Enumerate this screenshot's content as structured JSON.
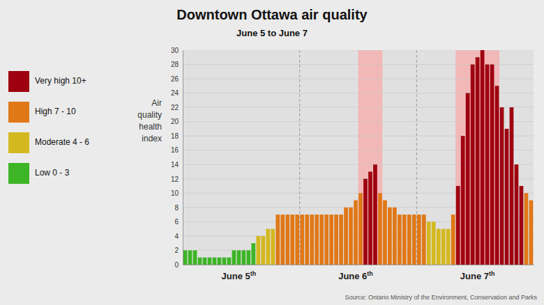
{
  "chart_data": {
    "type": "bar",
    "title": "Downtown Ottawa air quality",
    "subtitle": "June 5 to June 7",
    "source": "Source: Ontario Ministry of the Environment, Conservation and Parks",
    "ylabel": [
      "Air",
      "quality",
      "health",
      "index"
    ],
    "categories": [
      null,
      null,
      null,
      null,
      null,
      null,
      null,
      null,
      null,
      null,
      null,
      "June 5",
      null,
      null,
      null,
      null,
      null,
      null,
      null,
      null,
      null,
      null,
      null,
      null,
      null,
      null,
      null,
      null,
      null,
      null,
      null,
      null,
      null,
      null,
      null,
      "June 6",
      null,
      null,
      null,
      null,
      null,
      null,
      null,
      null,
      null,
      null,
      null,
      null,
      null,
      null,
      null,
      null,
      null,
      null,
      null,
      null,
      null,
      null,
      null,
      null,
      "June 7",
      null,
      null,
      null,
      null,
      null,
      null,
      null,
      null,
      null,
      null,
      null
    ],
    "category_suffix": "th",
    "values": [
      2,
      2,
      2,
      1,
      1,
      1,
      1,
      1,
      1,
      1,
      2,
      2,
      2,
      2,
      3,
      4,
      4,
      5,
      5,
      7,
      7,
      7,
      7,
      7,
      7,
      7,
      7,
      7,
      7,
      7,
      7,
      7,
      7,
      8,
      8,
      9,
      10,
      12,
      13,
      14,
      10,
      9,
      8,
      8,
      7,
      7,
      7,
      7,
      7,
      7,
      6,
      6,
      5,
      5,
      5,
      7,
      11,
      18,
      24,
      28,
      29,
      30,
      28,
      28,
      25,
      22,
      19,
      22,
      14,
      11,
      10,
      9
    ],
    "colors": [
      "#3db526",
      "#3db526",
      "#3db526",
      "#3db526",
      "#3db526",
      "#3db526",
      "#3db526",
      "#3db526",
      "#3db526",
      "#3db526",
      "#3db526",
      "#3db526",
      "#3db526",
      "#3db526",
      "#3db526",
      "#d4b820",
      "#d4b820",
      "#d4b820",
      "#d4b820",
      "#e07818",
      "#e07818",
      "#e07818",
      "#e07818",
      "#e07818",
      "#e07818",
      "#e07818",
      "#e07818",
      "#e07818",
      "#e07818",
      "#e07818",
      "#e07818",
      "#e07818",
      "#e07818",
      "#e07818",
      "#e07818",
      "#e07818",
      "#e07818",
      "#9e0010",
      "#9e0010",
      "#9e0010",
      "#e07818",
      "#e07818",
      "#e07818",
      "#e07818",
      "#e07818",
      "#e07818",
      "#e07818",
      "#e07818",
      "#e07818",
      "#e07818",
      "#d4b820",
      "#d4b820",
      "#d4b820",
      "#d4b820",
      "#d4b820",
      "#e07818",
      "#9e0010",
      "#9e0010",
      "#9e0010",
      "#9e0010",
      "#9e0010",
      "#9e0010",
      "#9e0010",
      "#9e0010",
      "#9e0010",
      "#9e0010",
      "#9e0010",
      "#9e0010",
      "#9e0010",
      "#9e0010",
      "#e07818",
      "#e07818"
    ],
    "ylim": [
      0,
      30
    ],
    "yticks": [
      0,
      2,
      4,
      6,
      8,
      10,
      12,
      14,
      16,
      18,
      20,
      22,
      24,
      26,
      28,
      30
    ],
    "grid": true,
    "legend": "left",
    "legend_items": [
      {
        "label": "Very high 10+",
        "color": "#9e0010"
      },
      {
        "label": "High 7 - 10",
        "color": "#e07818"
      },
      {
        "label": "Moderate 4 - 6",
        "color": "#d4b820"
      },
      {
        "label": "Low 0 - 3",
        "color": "#3db526"
      }
    ],
    "highlight_ranges": [
      [
        36,
        40
      ],
      [
        56,
        64
      ]
    ],
    "highlight_color": "#f2b8b8",
    "day_separators": [
      24,
      48
    ],
    "background_color": "#ebebeb",
    "plot_bg_color": "#e0e0e0"
  }
}
